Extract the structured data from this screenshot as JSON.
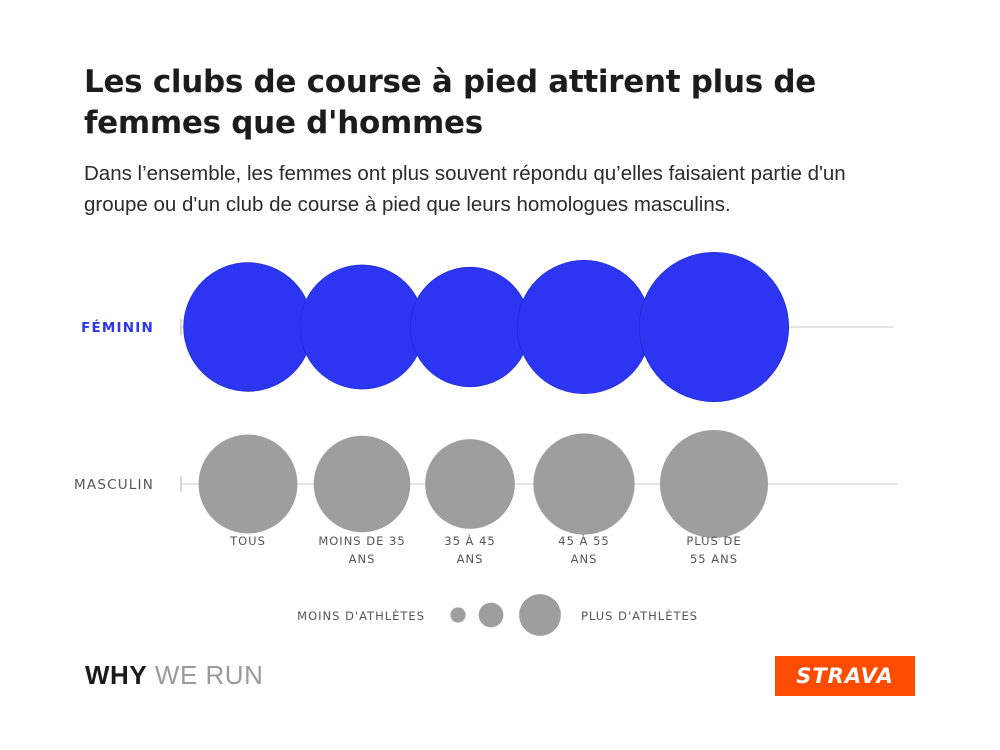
{
  "title": "Les clubs de course à pied attirent plus de femmes que d'hommes",
  "subtitle": "Dans l’ensemble, les femmes ont plus souvent répondu qu’elles faisaient partie d'un groupe ou d'un club de course à pied que leurs homologues masculins.",
  "colors": {
    "feminin": "#2b35f2",
    "masculin": "#9e9e9e",
    "baseline": "#d6d6d6",
    "brand": "#fc4c02",
    "label_gray": "#555555"
  },
  "chart_data": {
    "type": "bubble",
    "size_encoding": "relative number of athletes",
    "categories": [
      "TOUS",
      "MOINS DE 35 ANS",
      "35 À 45 ANS",
      "45 À 55 ANS",
      "PLUS DE 55 ANS"
    ],
    "category_labels": [
      [
        "TOUS"
      ],
      [
        "MOINS DE 35",
        "ANS"
      ],
      [
        "35 À 45",
        "ANS"
      ],
      [
        "45 À 55",
        "ANS"
      ],
      [
        "PLUS DE",
        "55 ANS"
      ]
    ],
    "series": [
      {
        "name": "FÉMININ",
        "values": [
          56,
          54,
          52,
          58,
          65
        ]
      },
      {
        "name": "MASCULIN",
        "values": [
          43,
          42,
          39,
          44,
          47
        ]
      }
    ],
    "size_legend": {
      "low_label": "MOINS D'ATHLÈTES",
      "high_label": "PLUS D'ATHLÈTES",
      "sample_values": [
        8,
        13,
        22
      ]
    }
  },
  "footer": {
    "brand_bold": "WHY",
    "brand_light": "WE RUN",
    "logo": "STRAVA"
  }
}
